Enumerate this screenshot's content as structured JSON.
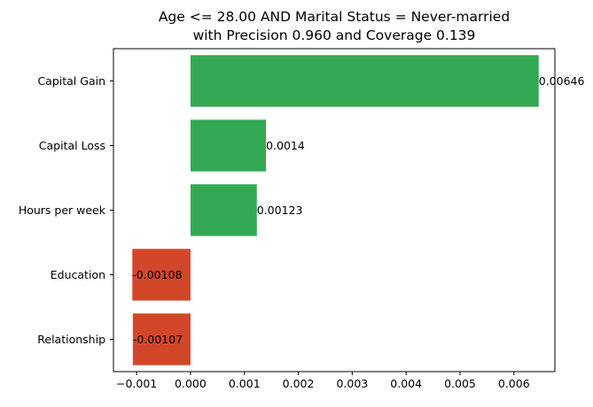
{
  "chart_data": {
    "type": "bar",
    "orientation": "horizontal",
    "title_line1": "Age <= 28.00 AND Marital Status = Never-married",
    "title_line2": "with Precision 0.960 and Coverage 0.139",
    "categories": [
      "Capital Gain",
      "Capital Loss",
      "Hours per week",
      "Education",
      "Relationship"
    ],
    "values": [
      0.00646,
      0.0014,
      0.00123,
      -0.00108,
      -0.00107
    ],
    "data_labels": [
      "0.00646",
      "0.0014",
      "0.00123",
      "-0.00108",
      "-0.00107"
    ],
    "xlim": [
      -0.00143,
      0.00676
    ],
    "xticks": [
      -0.001,
      0.0,
      0.001,
      0.002,
      0.003,
      0.004,
      0.005,
      0.006
    ],
    "xtick_labels": [
      "−0.001",
      "0.000",
      "0.001",
      "0.002",
      "0.003",
      "0.004",
      "0.005",
      "0.006"
    ],
    "xlabel": "",
    "ylabel": "",
    "grid": false,
    "colors": {
      "positive": "#33a853",
      "negative": "#d2472a"
    }
  }
}
